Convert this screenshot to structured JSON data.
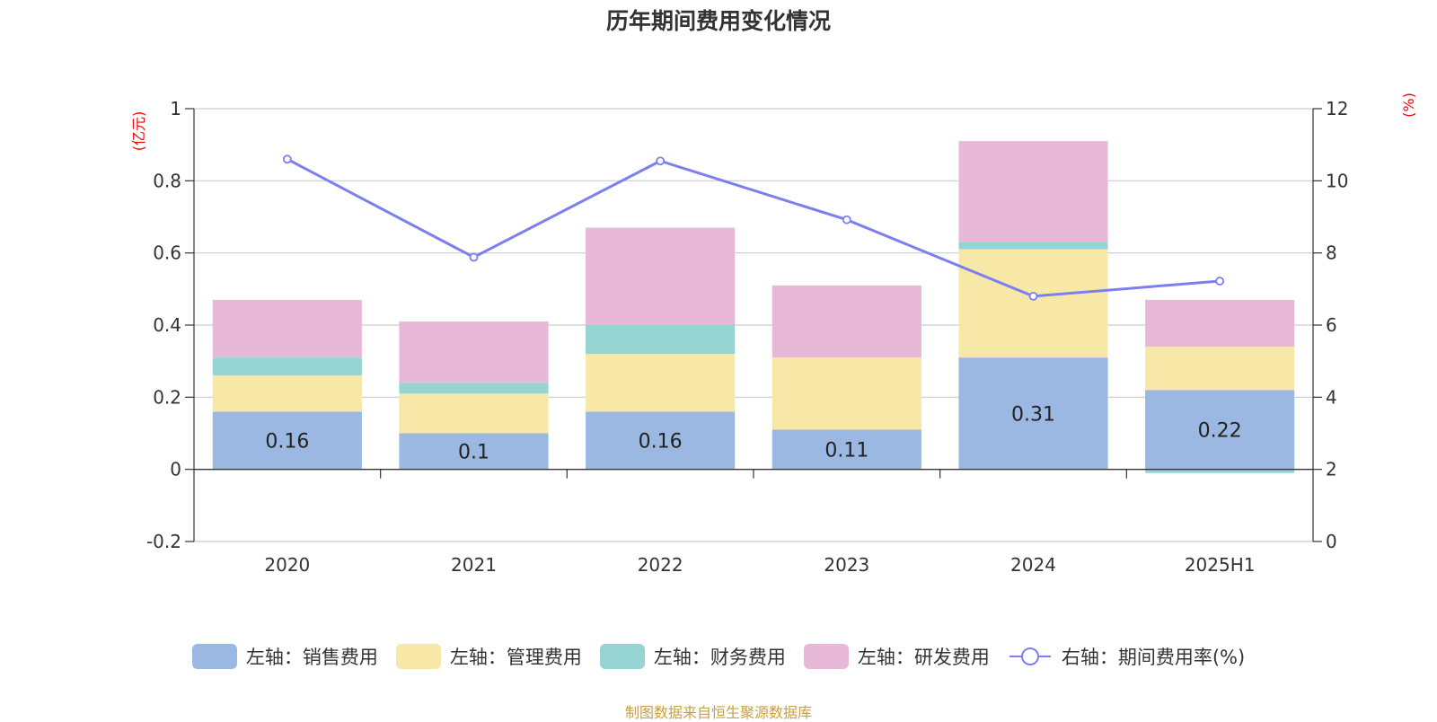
{
  "chart_data": {
    "type": "bar",
    "title": "历年期间费用变化情况",
    "categories": [
      "2020",
      "2021",
      "2022",
      "2023",
      "2024",
      "2025H1"
    ],
    "left_axis": {
      "unit": "(亿元)",
      "ylim": [
        -0.2,
        1
      ],
      "ticks": [
        "-0.2",
        "0",
        "0.2",
        "0.4",
        "0.6",
        "0.8",
        "1"
      ]
    },
    "right_axis": {
      "unit": "(%)",
      "ylim": [
        0,
        12
      ],
      "ticks": [
        "0",
        "2",
        "4",
        "6",
        "8",
        "10",
        "12"
      ]
    },
    "series": [
      {
        "name": "左轴：销售费用",
        "axis": "left",
        "kind": "stacked-bar",
        "color": "#9bb8e2",
        "values": [
          0.16,
          0.1,
          0.16,
          0.11,
          0.31,
          0.22
        ],
        "labels": [
          "0.16",
          "0.1",
          "0.16",
          "0.11",
          "0.31",
          "0.22"
        ]
      },
      {
        "name": "左轴：管理费用",
        "axis": "left",
        "kind": "stacked-bar",
        "color": "#f8e8a8",
        "values": [
          0.1,
          0.11,
          0.16,
          0.2,
          0.3,
          0.12
        ]
      },
      {
        "name": "左轴：财务费用",
        "axis": "left",
        "kind": "stacked-bar",
        "color": "#96d4d4",
        "values": [
          0.05,
          0.03,
          0.08,
          0.0,
          0.02,
          -0.01
        ]
      },
      {
        "name": "左轴：研发费用",
        "axis": "left",
        "kind": "stacked-bar",
        "color": "#e8b8d8",
        "values": [
          0.16,
          0.17,
          0.27,
          0.2,
          0.28,
          0.13
        ]
      },
      {
        "name": "右轴：期间费用率(%)",
        "axis": "right",
        "kind": "line",
        "color": "#7b7ff0",
        "values": [
          10.6,
          7.88,
          10.55,
          8.92,
          6.8,
          7.22
        ]
      }
    ],
    "grid": true,
    "legend_position": "bottom"
  },
  "source_note": "制图数据来自恒生聚源数据库"
}
